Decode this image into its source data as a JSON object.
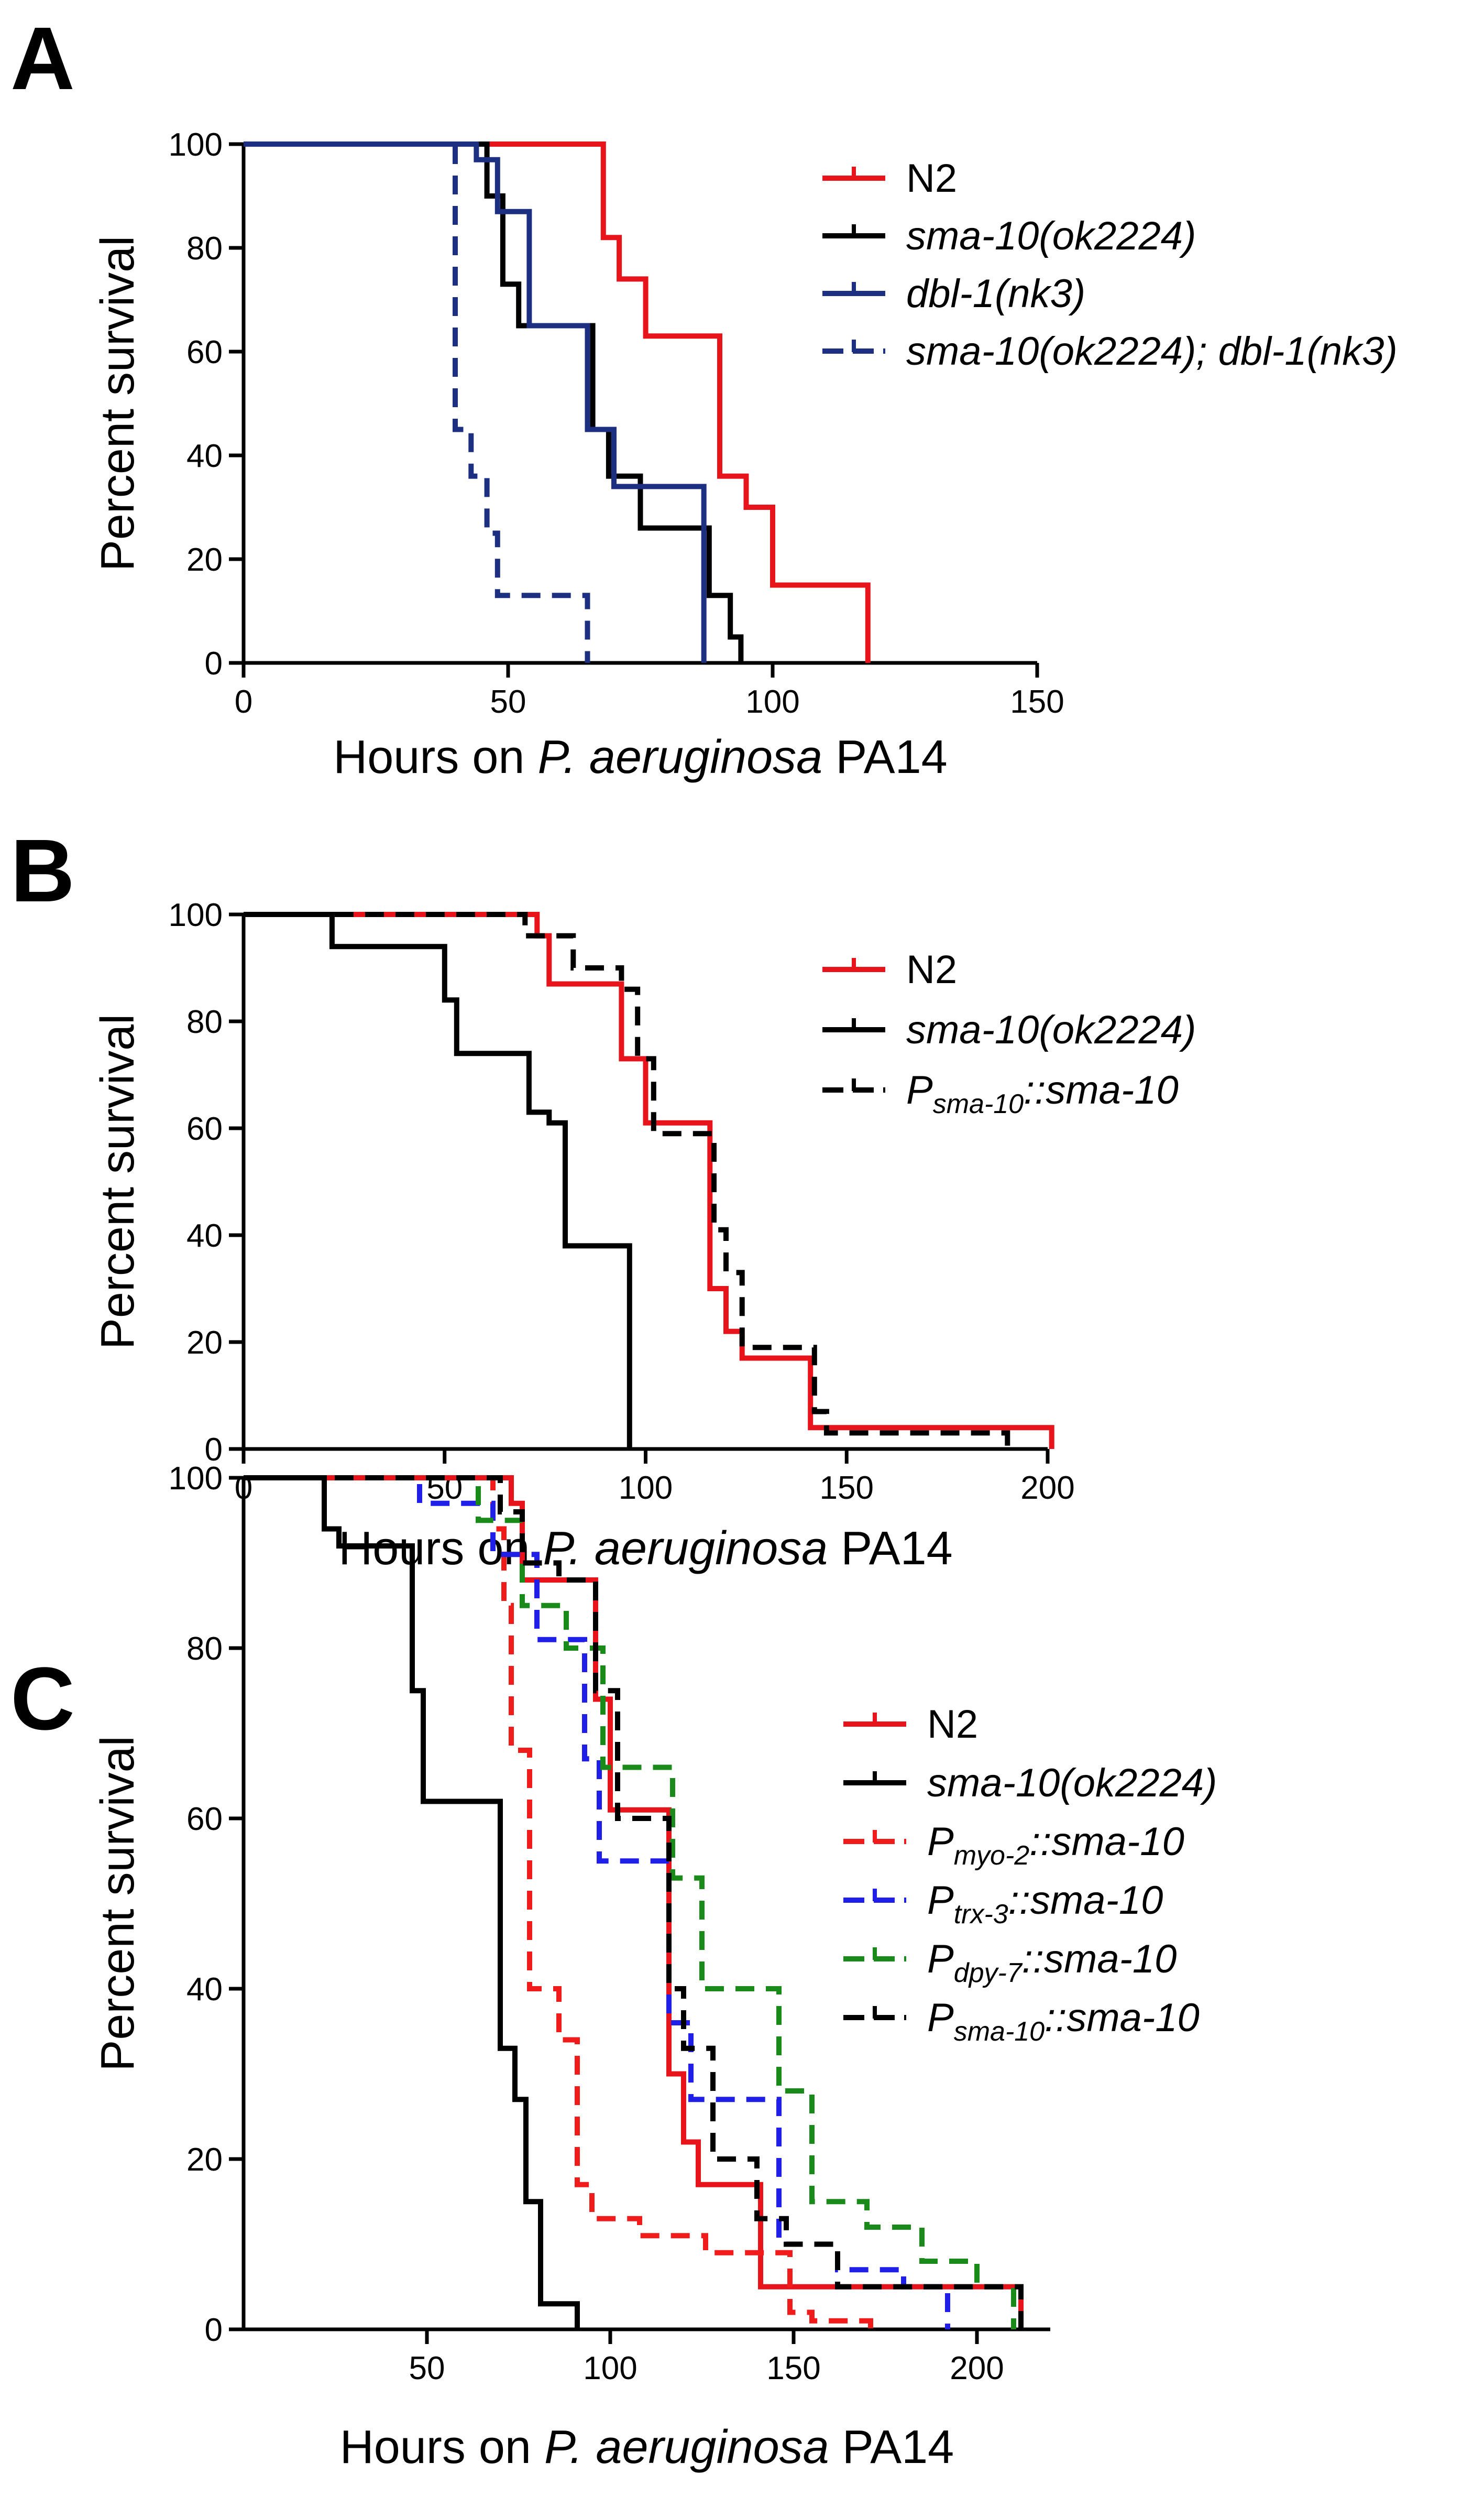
{
  "figure": {
    "panel_labels": [
      "A",
      "B",
      "C"
    ]
  },
  "chart_data": [
    {
      "panel": "A",
      "type": "line",
      "subtype": "kaplan-meier survival (step)",
      "ylabel": "Percent survival",
      "xlabel_parts": [
        "Hours on ",
        "P. aeruginosa",
        " PA14"
      ],
      "xlim": [
        0,
        150
      ],
      "ylim": [
        0,
        100
      ],
      "xticks": [
        0,
        50,
        100,
        150
      ],
      "yticks": [
        0,
        20,
        40,
        60,
        80,
        100
      ],
      "legend_position": "top-right",
      "series": [
        {
          "name": "N2",
          "label_parts": [
            {
              "t": "N2",
              "style": "plain"
            }
          ],
          "color": "#e8141c",
          "dash": false,
          "x": [
            0,
            68,
            68,
            71,
            71,
            76,
            76,
            90,
            90,
            95,
            95,
            100,
            100,
            118,
            118
          ],
          "y": [
            100,
            100,
            82,
            82,
            74,
            74,
            63,
            63,
            36,
            36,
            30,
            30,
            15,
            15,
            0
          ]
        },
        {
          "name": "sma-10(ok2224)",
          "label_parts": [
            {
              "t": "sma-10(ok2224)",
              "style": "italic"
            }
          ],
          "color": "#000000",
          "dash": false,
          "x": [
            0,
            46,
            46,
            49,
            49,
            52,
            52,
            66,
            66,
            69,
            69,
            75,
            75,
            88,
            88,
            92,
            92,
            94,
            94
          ],
          "y": [
            100,
            100,
            90,
            90,
            73,
            73,
            65,
            65,
            45,
            45,
            36,
            36,
            26,
            26,
            13,
            13,
            5,
            5,
            0
          ]
        },
        {
          "name": "dbl-1(nk3)",
          "label_parts": [
            {
              "t": "dbl-1(nk3)",
              "style": "italic"
            }
          ],
          "color": "#1c2f80",
          "dash": false,
          "x": [
            0,
            44,
            44,
            48,
            48,
            54,
            54,
            65,
            65,
            70,
            70,
            74,
            74,
            87,
            87
          ],
          "y": [
            100,
            100,
            97,
            97,
            87,
            87,
            65,
            65,
            45,
            45,
            34,
            34,
            34,
            34,
            0
          ]
        },
        {
          "name": "sma-10(ok2224); dbl-1(nk3)",
          "label_parts": [
            {
              "t": "sma-10(ok2224); dbl-1(nk3)",
              "style": "italic"
            }
          ],
          "color": "#1c2f80",
          "dash": true,
          "x": [
            0,
            40,
            40,
            43,
            43,
            46,
            46,
            48,
            48,
            60,
            60,
            65,
            65
          ],
          "y": [
            100,
            100,
            45,
            45,
            36,
            36,
            25,
            25,
            13,
            13,
            13,
            13,
            0
          ]
        }
      ]
    },
    {
      "panel": "B",
      "type": "line",
      "subtype": "kaplan-meier survival (step)",
      "ylabel": "Percent survival",
      "xlabel_parts": [
        "Hours on ",
        "P. aeruginosa",
        " PA14"
      ],
      "xlim": [
        0,
        200
      ],
      "ylim": [
        0,
        100
      ],
      "xticks": [
        0,
        50,
        100,
        150,
        200
      ],
      "yticks": [
        0,
        20,
        40,
        60,
        80,
        100
      ],
      "legend_position": "top-right",
      "series": [
        {
          "name": "N2",
          "label_parts": [
            {
              "t": "N2",
              "style": "plain"
            }
          ],
          "color": "#e8141c",
          "dash": false,
          "x": [
            0,
            73,
            73,
            76,
            76,
            77,
            77,
            94,
            94,
            100,
            100,
            116,
            116,
            120,
            120,
            124,
            124,
            141,
            141,
            201,
            201
          ],
          "y": [
            100,
            100,
            96,
            96,
            87,
            87,
            87,
            87,
            73,
            73,
            61,
            61,
            30,
            30,
            22,
            22,
            17,
            17,
            4,
            4,
            0
          ]
        },
        {
          "name": "sma-10(ok2224)",
          "label_parts": [
            {
              "t": "sma-10(ok2224)",
              "style": "italic"
            }
          ],
          "color": "#000000",
          "dash": false,
          "x": [
            0,
            22,
            22,
            50,
            50,
            53,
            53,
            71,
            71,
            76,
            76,
            80,
            80,
            96,
            96
          ],
          "y": [
            100,
            100,
            94,
            94,
            84,
            84,
            74,
            74,
            63,
            63,
            61,
            61,
            38,
            38,
            0
          ]
        },
        {
          "name": "Psma-10::sma-10",
          "label_parts": [
            {
              "t": "P",
              "style": "italic"
            },
            {
              "t": "sma-10",
              "style": "sub"
            },
            {
              "t": "::sma-10",
              "style": "italic"
            }
          ],
          "color": "#000000",
          "dash": true,
          "x": [
            0,
            70,
            70,
            82,
            82,
            94,
            94,
            98,
            98,
            102,
            102,
            117,
            117,
            120,
            120,
            124,
            124,
            142,
            142,
            145,
            145,
            190,
            190
          ],
          "y": [
            100,
            100,
            96,
            96,
            90,
            90,
            86,
            86,
            73,
            73,
            59,
            59,
            41,
            41,
            33,
            33,
            19,
            19,
            7,
            7,
            3,
            3,
            0
          ]
        }
      ]
    },
    {
      "panel": "C",
      "type": "line",
      "subtype": "kaplan-meier survival (step)",
      "ylabel": "Percent survival",
      "xlabel_parts": [
        "Hours on ",
        "P. aeruginosa",
        " PA14"
      ],
      "xlim": [
        0,
        220
      ],
      "ylim": [
        0,
        100
      ],
      "xticks": [
        50,
        100,
        150,
        200
      ],
      "yticks": [
        0,
        20,
        40,
        60,
        80,
        100
      ],
      "legend_position": "top-right",
      "series": [
        {
          "name": "N2",
          "label_parts": [
            {
              "t": "N2",
              "style": "plain"
            }
          ],
          "color": "#e8141c",
          "dash": false,
          "x": [
            0,
            73,
            73,
            76,
            76,
            80,
            80,
            96,
            96,
            100,
            100,
            116,
            116,
            120,
            120,
            124,
            124,
            141,
            141,
            212,
            212
          ],
          "y": [
            100,
            100,
            97,
            97,
            88,
            88,
            88,
            88,
            74,
            74,
            61,
            61,
            30,
            30,
            22,
            22,
            17,
            17,
            5,
            5,
            0
          ]
        },
        {
          "name": "sma-10(ok2224)",
          "label_parts": [
            {
              "t": "sma-10(ok2224)",
              "style": "italic"
            }
          ],
          "color": "#000000",
          "dash": false,
          "x": [
            0,
            22,
            22,
            26,
            26,
            46,
            46,
            49,
            49,
            70,
            70,
            74,
            74,
            77,
            77,
            81,
            81,
            91,
            91
          ],
          "y": [
            100,
            100,
            94,
            94,
            92,
            92,
            75,
            75,
            62,
            62,
            33,
            33,
            27,
            27,
            15,
            15,
            3,
            3,
            0
          ]
        },
        {
          "name": "Pmyo-2::sma-10",
          "label_parts": [
            {
              "t": "P",
              "style": "italic"
            },
            {
              "t": "myo-2",
              "style": "sub"
            },
            {
              "t": "::sma-10",
              "style": "italic"
            }
          ],
          "color": "#f01c1c",
          "dash": true,
          "x": [
            0,
            68,
            68,
            71,
            71,
            73,
            73,
            78,
            78,
            86,
            86,
            91,
            91,
            95,
            95,
            108,
            108,
            126,
            126,
            149,
            149,
            155,
            155,
            171,
            171
          ],
          "y": [
            100,
            100,
            94,
            94,
            85,
            85,
            68,
            68,
            40,
            40,
            34,
            34,
            17,
            17,
            13,
            13,
            11,
            11,
            9,
            9,
            2,
            2,
            1,
            1,
            0
          ]
        },
        {
          "name": "Ptrx-3::sma-10",
          "label_parts": [
            {
              "t": "P",
              "style": "italic"
            },
            {
              "t": "trx-3",
              "style": "sub"
            },
            {
              "t": "::sma-10",
              "style": "italic"
            }
          ],
          "color": "#1f1fe8",
          "dash": true,
          "x": [
            0,
            48,
            48,
            68,
            68,
            80,
            80,
            93,
            93,
            97,
            97,
            116,
            116,
            122,
            122,
            146,
            146,
            162,
            162,
            180,
            180,
            192,
            192
          ],
          "y": [
            100,
            100,
            97,
            97,
            91,
            91,
            81,
            81,
            67,
            67,
            55,
            55,
            36,
            36,
            27,
            27,
            10,
            10,
            7,
            7,
            5,
            5,
            0
          ]
        },
        {
          "name": "Pdpy-7::sma-10",
          "label_parts": [
            {
              "t": "P",
              "style": "italic"
            },
            {
              "t": "dpy-7",
              "style": "sub"
            },
            {
              "t": "::sma-10",
              "style": "italic"
            }
          ],
          "color": "#1a8a1a",
          "dash": true,
          "x": [
            0,
            64,
            64,
            76,
            76,
            88,
            88,
            98,
            98,
            117,
            117,
            125,
            125,
            146,
            146,
            155,
            155,
            170,
            170,
            185,
            185,
            200,
            200,
            210,
            210
          ],
          "y": [
            100,
            100,
            95,
            95,
            85,
            85,
            80,
            80,
            66,
            66,
            53,
            53,
            40,
            40,
            28,
            28,
            15,
            15,
            12,
            12,
            8,
            8,
            5,
            5,
            0
          ]
        },
        {
          "name": "Psma-10::sma-10",
          "label_parts": [
            {
              "t": "P",
              "style": "italic"
            },
            {
              "t": "sma-10",
              "style": "sub"
            },
            {
              "t": "::sma-10",
              "style": "italic"
            }
          ],
          "color": "#000000",
          "dash": true,
          "x": [
            0,
            70,
            70,
            76,
            76,
            86,
            86,
            96,
            96,
            102,
            102,
            116,
            116,
            120,
            120,
            128,
            128,
            140,
            140,
            148,
            148,
            162,
            162,
            178,
            178,
            212,
            212
          ],
          "y": [
            100,
            100,
            96,
            96,
            90,
            90,
            88,
            88,
            75,
            75,
            60,
            60,
            40,
            40,
            33,
            33,
            20,
            20,
            13,
            13,
            10,
            10,
            5,
            5,
            5,
            5,
            0
          ]
        }
      ]
    }
  ]
}
